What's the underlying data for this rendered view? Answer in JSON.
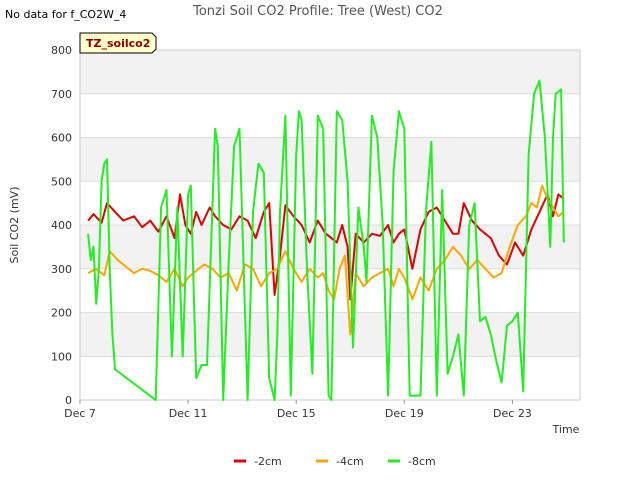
{
  "chart_data": {
    "type": "line",
    "title": "Tonzi Soil CO2 Profile: Tree (West) CO2",
    "note": "No data for f_CO2W_4",
    "badge": "TZ_soilco2",
    "xlabel": "Time",
    "ylabel": "Soil CO2 (mV)",
    "xlim": [
      7,
      25.5
    ],
    "ylim": [
      0,
      800
    ],
    "yticks": [
      0,
      100,
      200,
      300,
      400,
      500,
      600,
      700,
      800
    ],
    "xticks": [
      {
        "value": 7,
        "label": "Dec 7"
      },
      {
        "value": 11,
        "label": "Dec 11"
      },
      {
        "value": 15,
        "label": "Dec 15"
      },
      {
        "value": 19,
        "label": "Dec 19"
      },
      {
        "value": 23,
        "label": "Dec 23"
      }
    ],
    "legend_position": "bottom-center",
    "colors": {
      "plot_band": "#f2f2f2",
      "grid": "#dcdcdc",
      "badge_bg": "#ffffcc",
      "badge_text": "#8b0000"
    },
    "series": [
      {
        "name": "-2cm",
        "color": "#dd0000",
        "x": [
          7.3,
          7.5,
          7.8,
          8.0,
          8.3,
          8.6,
          9.0,
          9.3,
          9.6,
          9.9,
          10.2,
          10.5,
          10.7,
          10.9,
          11.1,
          11.3,
          11.5,
          11.8,
          12.0,
          12.3,
          12.6,
          12.9,
          13.2,
          13.5,
          13.8,
          14.0,
          14.2,
          14.4,
          14.6,
          14.9,
          15.2,
          15.5,
          15.8,
          16.1,
          16.3,
          16.5,
          16.7,
          16.9,
          17.0,
          17.2,
          17.5,
          17.8,
          18.1,
          18.4,
          18.6,
          18.8,
          19.0,
          19.3,
          19.6,
          19.9,
          20.2,
          20.5,
          20.8,
          21.0,
          21.2,
          21.5,
          21.8,
          22.0,
          22.2,
          22.5,
          22.8,
          23.1,
          23.4,
          23.7,
          24.0,
          24.3,
          24.5,
          24.7,
          24.9
        ],
        "y": [
          410,
          425,
          405,
          450,
          430,
          410,
          420,
          395,
          410,
          385,
          420,
          370,
          470,
          400,
          380,
          430,
          400,
          440,
          420,
          400,
          390,
          420,
          410,
          370,
          430,
          450,
          240,
          330,
          445,
          420,
          400,
          360,
          410,
          380,
          370,
          360,
          400,
          350,
          230,
          380,
          360,
          380,
          375,
          400,
          360,
          380,
          390,
          300,
          390,
          430,
          440,
          410,
          380,
          380,
          450,
          410,
          390,
          380,
          370,
          330,
          310,
          360,
          330,
          390,
          430,
          470,
          420,
          470,
          460
        ]
      },
      {
        "name": "-4cm",
        "color": "#ffa500",
        "x": [
          7.3,
          7.6,
          7.9,
          8.1,
          8.4,
          8.7,
          9.0,
          9.3,
          9.6,
          9.9,
          10.2,
          10.5,
          10.8,
          11.0,
          11.3,
          11.6,
          11.9,
          12.2,
          12.5,
          12.8,
          13.1,
          13.4,
          13.7,
          14.0,
          14.3,
          14.6,
          14.9,
          15.2,
          15.5,
          15.8,
          16.0,
          16.2,
          16.4,
          16.6,
          16.8,
          17.0,
          17.2,
          17.5,
          17.8,
          18.1,
          18.4,
          18.6,
          18.8,
          19.0,
          19.3,
          19.6,
          19.9,
          20.2,
          20.5,
          20.8,
          21.1,
          21.4,
          21.7,
          22.0,
          22.3,
          22.6,
          22.9,
          23.2,
          23.5,
          23.7,
          23.9,
          24.1,
          24.3,
          24.5,
          24.7,
          24.9
        ],
        "y": [
          290,
          300,
          285,
          340,
          320,
          305,
          290,
          300,
          295,
          285,
          270,
          300,
          260,
          280,
          295,
          310,
          300,
          280,
          290,
          250,
          310,
          300,
          260,
          290,
          300,
          340,
          300,
          270,
          300,
          280,
          290,
          250,
          230,
          300,
          330,
          150,
          290,
          260,
          280,
          290,
          300,
          260,
          300,
          280,
          230,
          280,
          250,
          300,
          320,
          350,
          330,
          300,
          320,
          300,
          280,
          290,
          350,
          400,
          420,
          450,
          440,
          490,
          460,
          440,
          420,
          430
        ]
      },
      {
        "name": "-8cm",
        "color": "#22ee22",
        "x": [
          7.3,
          7.4,
          7.5,
          7.6,
          7.7,
          7.8,
          7.9,
          8.0,
          8.1,
          8.2,
          8.3,
          9.8,
          10.0,
          10.2,
          10.4,
          10.6,
          10.8,
          11.0,
          11.1,
          11.3,
          11.5,
          11.7,
          12.0,
          12.1,
          12.3,
          12.5,
          12.7,
          12.9,
          13.2,
          13.4,
          13.6,
          13.8,
          14.0,
          14.2,
          14.3,
          14.4,
          14.6,
          14.8,
          15.0,
          15.1,
          15.2,
          15.4,
          15.6,
          15.8,
          16.0,
          16.2,
          16.3,
          16.5,
          16.7,
          16.9,
          17.1,
          17.3,
          17.5,
          17.6,
          17.8,
          18.0,
          18.2,
          18.4,
          18.6,
          18.8,
          19.0,
          19.2,
          19.4,
          19.6,
          19.8,
          20.0,
          20.2,
          20.4,
          20.6,
          20.8,
          21.0,
          21.2,
          21.4,
          21.6,
          21.8,
          22.0,
          22.2,
          22.4,
          22.6,
          22.8,
          23.0,
          23.2,
          23.4,
          23.6,
          23.8,
          24.0,
          24.2,
          24.4,
          24.5,
          24.6,
          24.8,
          24.9
        ],
        "y": [
          380,
          320,
          350,
          220,
          300,
          500,
          540,
          550,
          300,
          150,
          70,
          0,
          440,
          480,
          100,
          440,
          100,
          470,
          490,
          50,
          80,
          80,
          620,
          580,
          0,
          310,
          580,
          620,
          0,
          430,
          540,
          520,
          50,
          0,
          150,
          430,
          650,
          10,
          560,
          660,
          640,
          300,
          60,
          650,
          620,
          10,
          0,
          660,
          640,
          500,
          120,
          440,
          350,
          270,
          650,
          600,
          400,
          10,
          520,
          660,
          620,
          10,
          10,
          10,
          430,
          590,
          10,
          480,
          60,
          100,
          150,
          10,
          400,
          450,
          180,
          190,
          150,
          90,
          40,
          170,
          180,
          200,
          20,
          560,
          700,
          730,
          600,
          350,
          600,
          700,
          710,
          360
        ]
      }
    ]
  }
}
